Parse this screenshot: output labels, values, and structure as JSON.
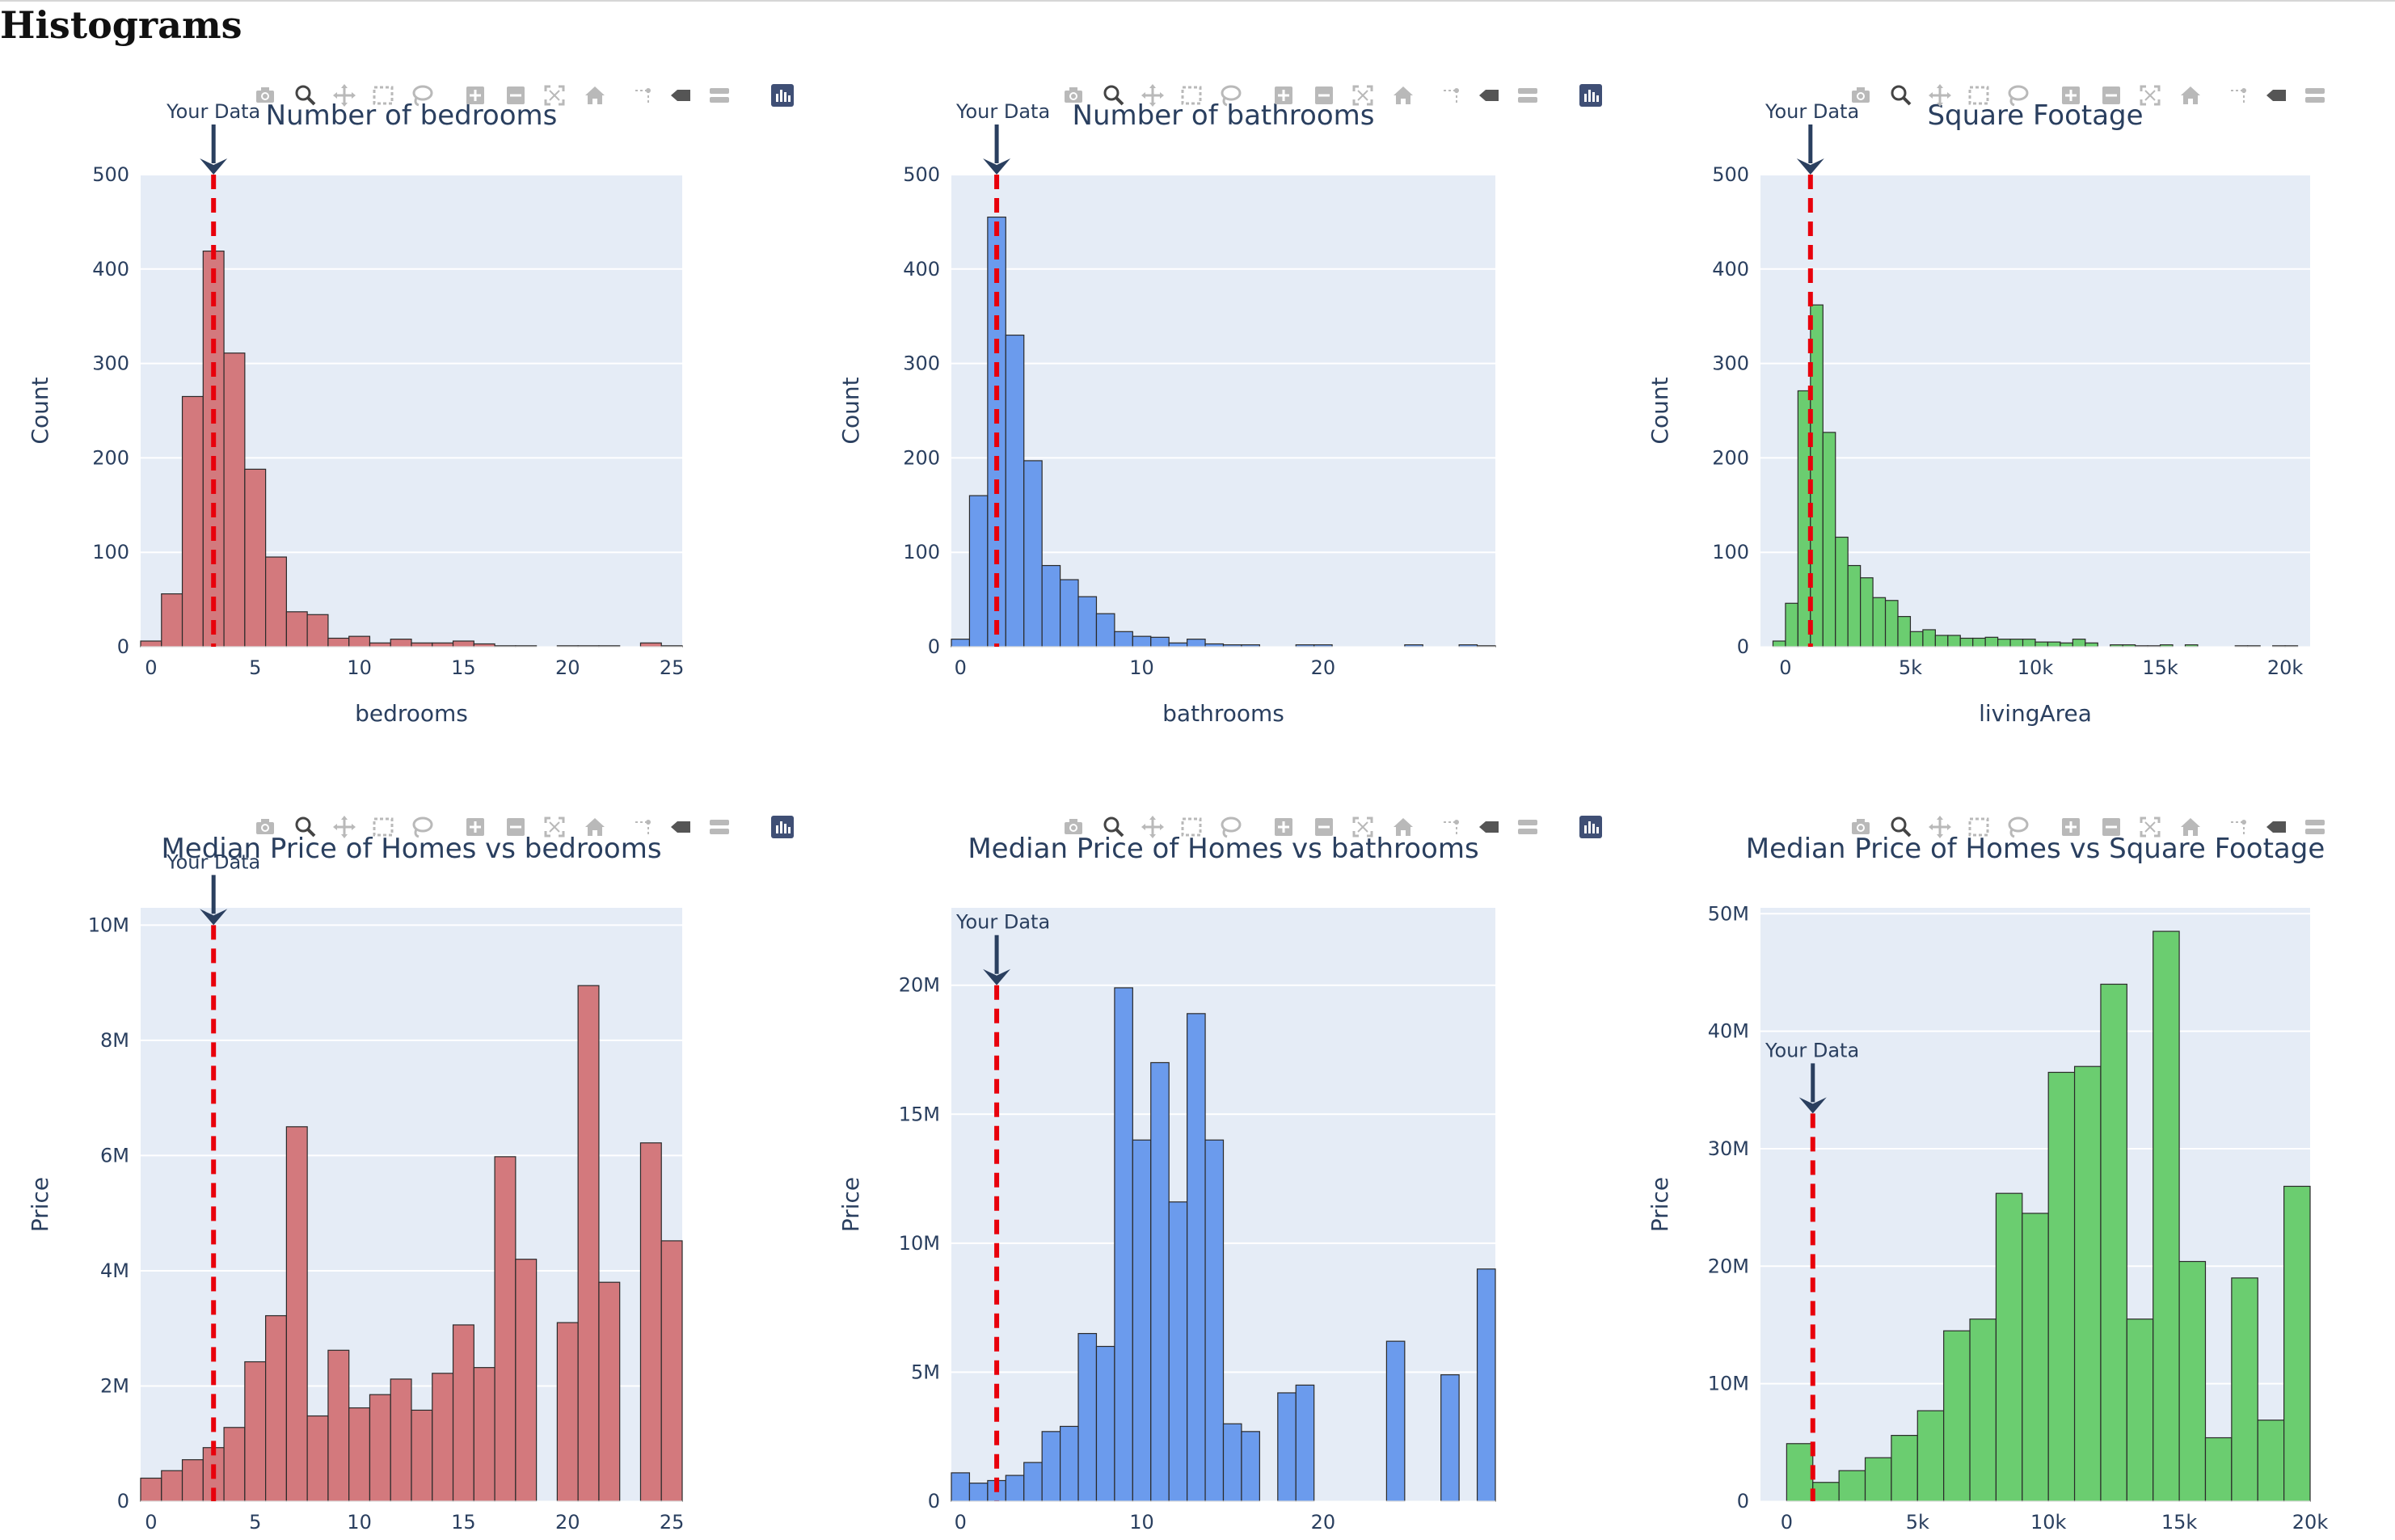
{
  "page": {
    "heading": "Histograms"
  },
  "colors": {
    "red": "#d3797d",
    "blue": "#6b9bed",
    "green": "#6bcd70",
    "marker": "#e8000b",
    "arrow": "#2a3f5f",
    "plot_bg": "#e5ecf6"
  },
  "modebar_icons": [
    "camera-icon",
    "zoom-icon",
    "pan-icon",
    "box-select-icon",
    "lasso-select-icon",
    "zoom-in-icon",
    "zoom-out-icon",
    "autoscale-icon",
    "reset-axes-icon",
    "spike-lines-icon",
    "hover-closest-icon",
    "hover-compare-icon",
    "plotly-logo-icon"
  ],
  "chart_data": [
    {
      "id": "bed-hist",
      "type": "bar",
      "title": "Number of bedrooms",
      "xlabel": "bedrooms",
      "ylabel": "Count",
      "color": "red",
      "bin_start": -0.5,
      "bin_width": 1,
      "xlim": [
        -0.5,
        25.5
      ],
      "ylim": [
        0,
        500
      ],
      "xticks": [
        0,
        5,
        10,
        15,
        20,
        25
      ],
      "xtick_labels": [
        "0",
        "5",
        "10",
        "15",
        "20",
        "25"
      ],
      "yticks": [
        0,
        100,
        200,
        300,
        400,
        500
      ],
      "ytick_labels": [
        "0",
        "100",
        "200",
        "300",
        "400",
        "500"
      ],
      "values": [
        6,
        56,
        265,
        419,
        311,
        188,
        95,
        37,
        34,
        9,
        11,
        4,
        8,
        4,
        4,
        6,
        3,
        1,
        1,
        0,
        1,
        1,
        1,
        0,
        4,
        1
      ],
      "marker_x": 3,
      "annotation": "Your Data",
      "annotation_y": 500
    },
    {
      "id": "bath-hist",
      "type": "bar",
      "title": "Number of bathrooms",
      "xlabel": "bathrooms",
      "ylabel": "Count",
      "color": "blue",
      "bin_start": -0.5,
      "bin_width": 1,
      "xlim": [
        -0.5,
        29.5
      ],
      "ylim": [
        0,
        500
      ],
      "xticks": [
        0,
        10,
        20
      ],
      "xtick_labels": [
        "0",
        "10",
        "20"
      ],
      "yticks": [
        0,
        100,
        200,
        300,
        400,
        500
      ],
      "ytick_labels": [
        "0",
        "100",
        "200",
        "300",
        "400",
        "500"
      ],
      "values": [
        8,
        160,
        455,
        330,
        197,
        86,
        71,
        53,
        35,
        16,
        11,
        10,
        4,
        8,
        3,
        2,
        2,
        0,
        0,
        2,
        2,
        0,
        0,
        0,
        0,
        2,
        0,
        0,
        2,
        1
      ],
      "marker_x": 2,
      "annotation": "Your Data",
      "annotation_y": 500
    },
    {
      "id": "area-hist",
      "type": "bar",
      "title": "Square Footage",
      "xlabel": "livingArea",
      "ylabel": "Count",
      "color": "green",
      "bin_start": -1000,
      "bin_width": 500,
      "xlim": [
        -1000,
        21000
      ],
      "ylim": [
        0,
        500
      ],
      "xticks": [
        0,
        5000,
        10000,
        15000,
        20000
      ],
      "xtick_labels": [
        "0",
        "5k",
        "10k",
        "15k",
        "20k"
      ],
      "yticks": [
        0,
        100,
        200,
        300,
        400,
        500
      ],
      "ytick_labels": [
        "0",
        "100",
        "200",
        "300",
        "400",
        "500"
      ],
      "values": [
        0,
        6,
        46,
        271,
        362,
        227,
        116,
        86,
        73,
        52,
        49,
        32,
        16,
        18,
        12,
        12,
        9,
        9,
        10,
        8,
        8,
        8,
        5,
        5,
        4,
        8,
        4,
        0,
        2,
        2,
        1,
        1,
        2,
        0,
        2,
        0,
        0,
        0,
        1,
        1,
        0,
        1,
        1,
        0
      ],
      "marker_x": 1000,
      "annotation": "Your Data",
      "annotation_y": 500
    },
    {
      "id": "bed-price",
      "type": "bar",
      "title": "Median Price of Homes vs bedrooms",
      "xlabel": "bedrooms",
      "ylabel": "Price",
      "color": "red",
      "bin_start": -0.5,
      "bin_width": 1,
      "xlim": [
        -0.5,
        25.5
      ],
      "ylim": [
        0,
        10300000
      ],
      "xticks": [
        0,
        5,
        10,
        15,
        20,
        25
      ],
      "xtick_labels": [
        "0",
        "5",
        "10",
        "15",
        "20",
        "25"
      ],
      "yticks": [
        0,
        2000000,
        4000000,
        6000000,
        8000000,
        10000000
      ],
      "ytick_labels": [
        "0",
        "2M",
        "4M",
        "6M",
        "8M",
        "10M"
      ],
      "values": [
        400000,
        530000,
        720000,
        930000,
        1280000,
        2420000,
        3220000,
        6500000,
        1480000,
        2620000,
        1620000,
        1850000,
        2120000,
        1580000,
        2220000,
        3060000,
        2320000,
        5980000,
        4200000,
        0,
        3100000,
        8950000,
        3800000,
        0,
        6220000,
        4520000
      ],
      "marker_x": 3,
      "annotation": "Your Data",
      "annotation_y": 10000000
    },
    {
      "id": "bath-price",
      "type": "bar",
      "title": "Median Price of Homes vs bathrooms",
      "xlabel": "bathrooms",
      "ylabel": "Price",
      "color": "blue",
      "bin_start": -0.5,
      "bin_width": 1,
      "xlim": [
        -0.5,
        29.5
      ],
      "ylim": [
        0,
        23000000
      ],
      "xticks": [
        0,
        10,
        20
      ],
      "xtick_labels": [
        "0",
        "10",
        "20"
      ],
      "yticks": [
        0,
        5000000,
        10000000,
        15000000,
        20000000
      ],
      "ytick_labels": [
        "0",
        "5M",
        "10M",
        "15M",
        "20M"
      ],
      "values": [
        1100000,
        700000,
        800000,
        1000000,
        1500000,
        2700000,
        2900000,
        6500000,
        6000000,
        19900000,
        14000000,
        17000000,
        11600000,
        18900000,
        14000000,
        3000000,
        2700000,
        0,
        4200000,
        4500000,
        0,
        0,
        0,
        0,
        6200000,
        0,
        0,
        4900000,
        0,
        9000000
      ],
      "marker_x": 2,
      "annotation": "Your Data",
      "annotation_y": 20000000
    },
    {
      "id": "area-price",
      "type": "bar",
      "title": "Median Price of Homes vs Square Footage",
      "xlabel": "livingArea",
      "ylabel": "Price",
      "color": "green",
      "bin_start": 0,
      "bin_width": 1000,
      "xlim": [
        -1000,
        20000
      ],
      "ylim": [
        0,
        50500000
      ],
      "xticks": [
        0,
        5000,
        10000,
        15000,
        20000
      ],
      "xtick_labels": [
        "0",
        "5k",
        "10k",
        "15k",
        "20k"
      ],
      "yticks": [
        0,
        10000000,
        20000000,
        30000000,
        40000000,
        50000000
      ],
      "ytick_labels": [
        "0",
        "10M",
        "20M",
        "30M",
        "40M",
        "50M"
      ],
      "values": [
        4900000,
        1600000,
        2600000,
        3700000,
        5600000,
        7700000,
        14500000,
        15500000,
        26200000,
        24500000,
        36500000,
        37000000,
        44000000,
        15500000,
        48500000,
        20400000,
        5400000,
        19000000,
        6900000,
        26800000
      ],
      "marker_x": 1000,
      "annotation": "Your Data",
      "annotation_y": 33000000
    }
  ]
}
